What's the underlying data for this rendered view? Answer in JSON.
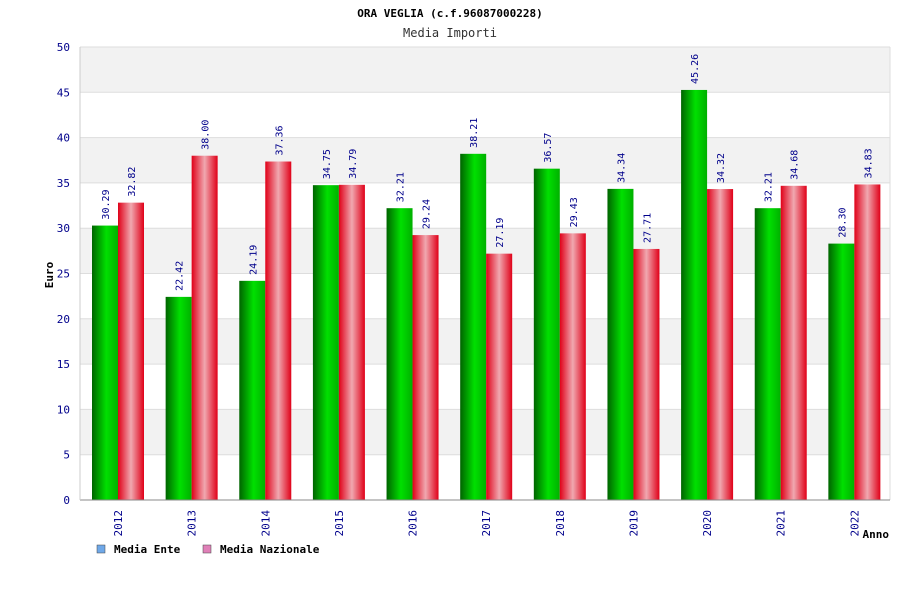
{
  "chart_data": {
    "type": "bar",
    "title": "ORA VEGLIA (c.f.96087000228)",
    "subtitle": "Media Importi",
    "xlabel": "Anno",
    "ylabel": "Euro",
    "ylim": [
      0,
      50
    ],
    "yticks": [
      0,
      5,
      10,
      15,
      20,
      25,
      30,
      35,
      40,
      45,
      50
    ],
    "categories": [
      "2012",
      "2013",
      "2014",
      "2015",
      "2016",
      "2017",
      "2018",
      "2019",
      "2020",
      "2021",
      "2022"
    ],
    "series": [
      {
        "name": "Media Ente",
        "color": "#00c800",
        "values": [
          30.29,
          22.42,
          24.19,
          34.75,
          32.21,
          38.21,
          36.57,
          34.34,
          45.26,
          32.21,
          28.3
        ],
        "labels": [
          "30.29",
          "22.42",
          "24.19",
          "34.75",
          "32.21",
          "38.21",
          "36.57",
          "34.34",
          "45.26",
          "32.21",
          "28.30"
        ]
      },
      {
        "name": "Media Nazionale",
        "color": "#e8102a",
        "values": [
          32.82,
          38.0,
          37.36,
          34.79,
          29.24,
          27.19,
          29.43,
          27.71,
          34.32,
          34.68,
          34.83
        ],
        "labels": [
          "32.82",
          "38.00",
          "37.36",
          "34.79",
          "29.24",
          "27.19",
          "29.43",
          "27.71",
          "34.32",
          "34.68",
          "34.83"
        ]
      }
    ],
    "grid": true,
    "legend": "bottom-left",
    "legend_colors": [
      "#6fa8e8",
      "#e080b8"
    ]
  }
}
